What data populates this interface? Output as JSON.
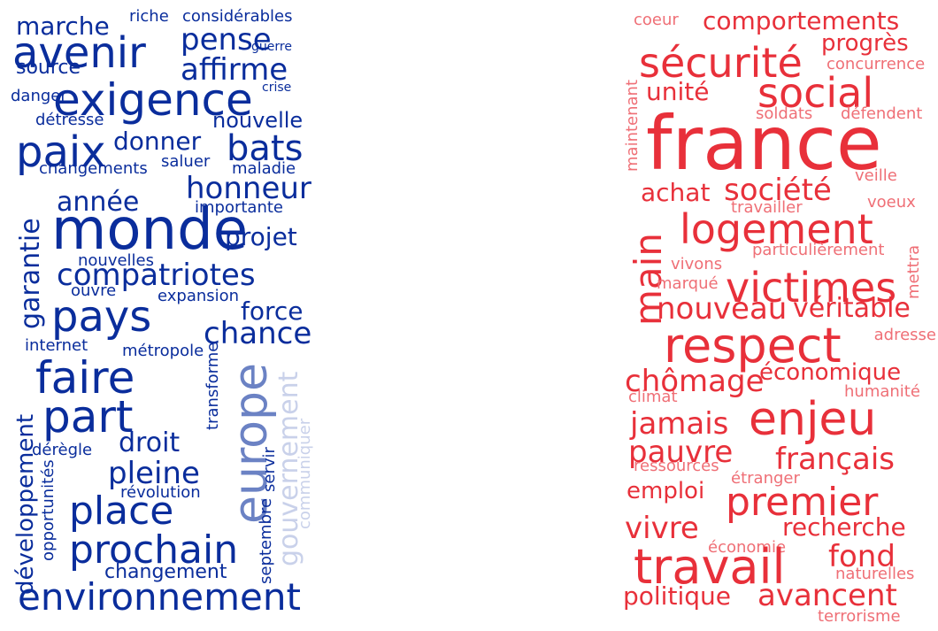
{
  "colors": {
    "left_primary": "#0a2d9c",
    "left_medium": "#6b82c4",
    "left_light": "#9aaad6",
    "left_faint": "#c9d1ea",
    "right_primary": "#e8303a",
    "right_light": "#ef6f76"
  },
  "left_cloud": [
    {
      "text": "marche"
    },
    {
      "text": "riche"
    },
    {
      "text": "considérables"
    },
    {
      "text": "avenir"
    },
    {
      "text": "pense"
    },
    {
      "text": "guerre"
    },
    {
      "text": "source"
    },
    {
      "text": "affirme"
    },
    {
      "text": "crise"
    },
    {
      "text": "danger"
    },
    {
      "text": "exigence"
    },
    {
      "text": "détresse"
    },
    {
      "text": "nouvelle"
    },
    {
      "text": "paix"
    },
    {
      "text": "donner"
    },
    {
      "text": "bats"
    },
    {
      "text": "changements"
    },
    {
      "text": "saluer"
    },
    {
      "text": "maladie"
    },
    {
      "text": "honneur"
    },
    {
      "text": "année"
    },
    {
      "text": "importante"
    },
    {
      "text": "garantie"
    },
    {
      "text": "monde"
    },
    {
      "text": "projet"
    },
    {
      "text": "nouvelles"
    },
    {
      "text": "compatriotes"
    },
    {
      "text": "ouvre"
    },
    {
      "text": "expansion"
    },
    {
      "text": "pays"
    },
    {
      "text": "force"
    },
    {
      "text": "chance"
    },
    {
      "text": "internet"
    },
    {
      "text": "métropole"
    },
    {
      "text": "transforme"
    },
    {
      "text": "europe"
    },
    {
      "text": "gouvernement"
    },
    {
      "text": "faire"
    },
    {
      "text": "développement"
    },
    {
      "text": "part"
    },
    {
      "text": "droit"
    },
    {
      "text": "dérègle"
    },
    {
      "text": "servir"
    },
    {
      "text": "communiquer"
    },
    {
      "text": "opportunités"
    },
    {
      "text": "pleine"
    },
    {
      "text": "révolution"
    },
    {
      "text": "place"
    },
    {
      "text": "septembre"
    },
    {
      "text": "prochain"
    },
    {
      "text": "changement"
    },
    {
      "text": "environnement"
    }
  ],
  "right_cloud": [
    {
      "text": "coeur"
    },
    {
      "text": "comportements"
    },
    {
      "text": "progrès"
    },
    {
      "text": "sécurité"
    },
    {
      "text": "concurrence"
    },
    {
      "text": "social"
    },
    {
      "text": "unité"
    },
    {
      "text": "maintenant"
    },
    {
      "text": "soldats"
    },
    {
      "text": "défendent"
    },
    {
      "text": "france"
    },
    {
      "text": "veille"
    },
    {
      "text": "achat"
    },
    {
      "text": "société"
    },
    {
      "text": "travailler"
    },
    {
      "text": "voeux"
    },
    {
      "text": "logement"
    },
    {
      "text": "main"
    },
    {
      "text": "particulièrement"
    },
    {
      "text": "vivons"
    },
    {
      "text": "mettra"
    },
    {
      "text": "marqué"
    },
    {
      "text": "victimes"
    },
    {
      "text": "nouveau"
    },
    {
      "text": "véritable"
    },
    {
      "text": "respect"
    },
    {
      "text": "adresse"
    },
    {
      "text": "économique"
    },
    {
      "text": "chômage"
    },
    {
      "text": "humanité"
    },
    {
      "text": "climat"
    },
    {
      "text": "enjeu"
    },
    {
      "text": "jamais"
    },
    {
      "text": "pauvre"
    },
    {
      "text": "ressources"
    },
    {
      "text": "français"
    },
    {
      "text": "étranger"
    },
    {
      "text": "emploi"
    },
    {
      "text": "premier"
    },
    {
      "text": "vivre"
    },
    {
      "text": "recherche"
    },
    {
      "text": "économie"
    },
    {
      "text": "travail"
    },
    {
      "text": "fond"
    },
    {
      "text": "naturelles"
    },
    {
      "text": "politique"
    },
    {
      "text": "avancent"
    },
    {
      "text": "terrorisme"
    }
  ]
}
